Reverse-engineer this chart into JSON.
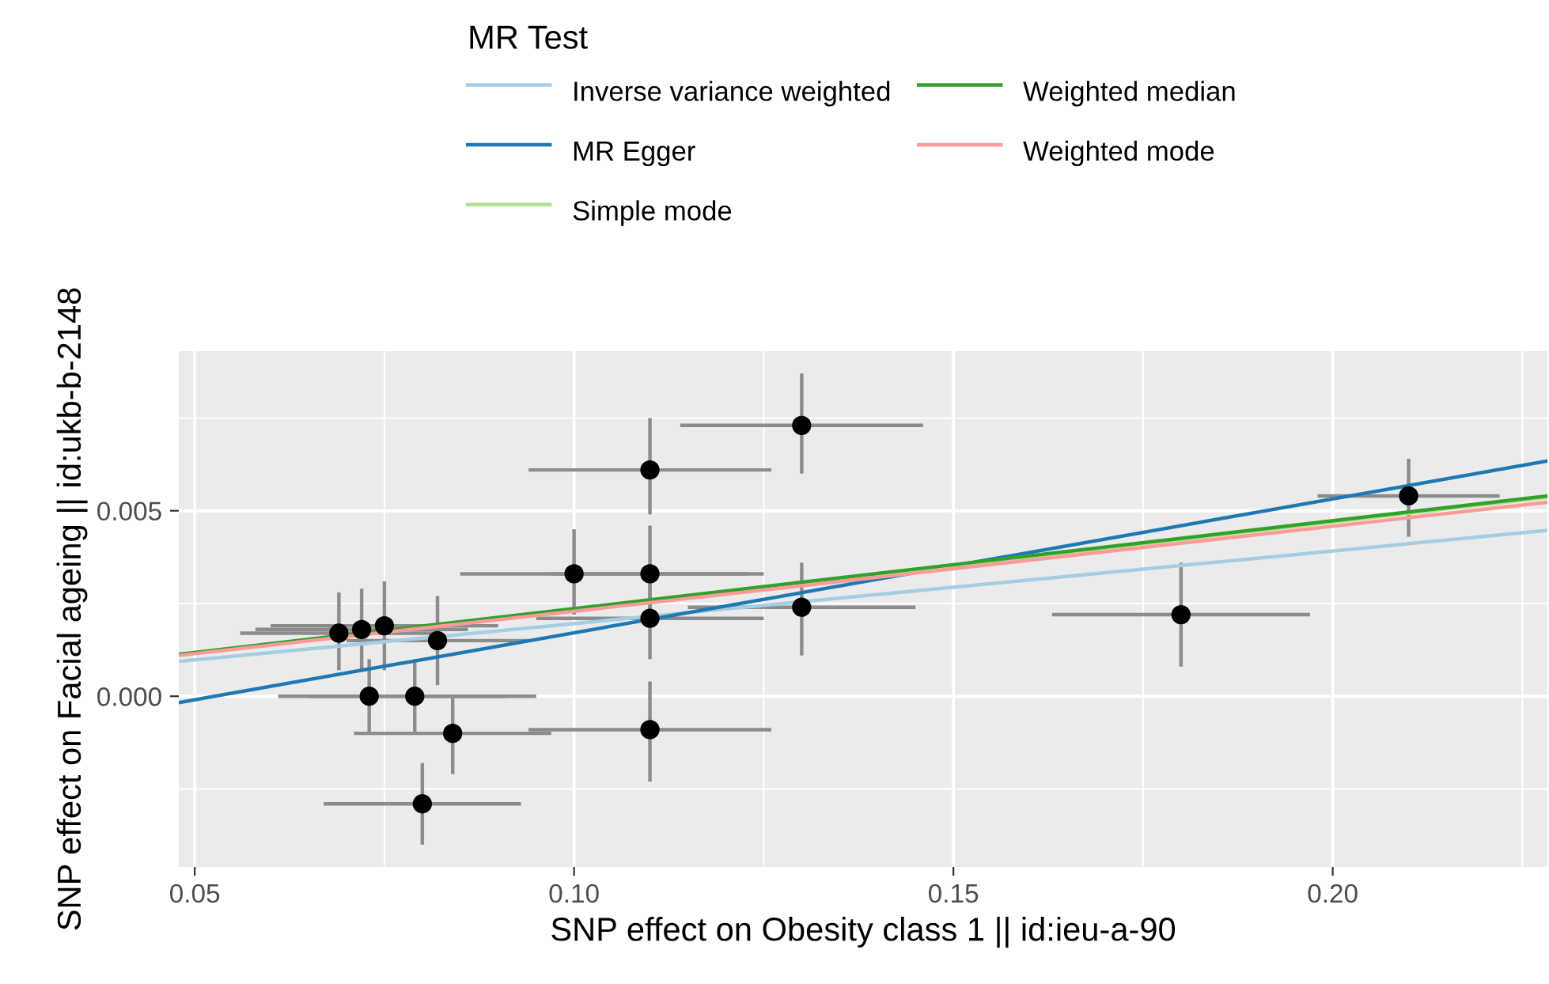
{
  "chart_data": {
    "type": "scatter",
    "xlabel": "SNP effect on Obesity class 1 || id:ieu-a-90",
    "ylabel": "SNP effect on Facial ageing || id:ukb-b-2148",
    "legend_title": "MR Test",
    "legend": "top",
    "grid": true,
    "xlim": [
      0.0479,
      0.2283
    ],
    "ylim": [
      -0.0046,
      0.0093
    ],
    "xticks": [
      {
        "value": 0.05,
        "label": "0.05"
      },
      {
        "value": 0.1,
        "label": "0.10"
      },
      {
        "value": 0.15,
        "label": "0.15"
      },
      {
        "value": 0.2,
        "label": "0.20"
      }
    ],
    "yticks": [
      {
        "value": 0.0,
        "label": "0.000"
      },
      {
        "value": 0.005,
        "label": "0.005"
      }
    ],
    "series": [
      {
        "marker": "circle",
        "color": "#000000",
        "x": [
          0.13,
          0.11,
          0.1,
          0.11,
          0.11,
          0.13,
          0.069,
          0.072,
          0.075,
          0.082,
          0.073,
          0.079,
          0.084,
          0.08,
          0.11,
          0.18,
          0.21
        ],
        "values": [
          0.0073,
          0.0061,
          0.0033,
          0.0033,
          0.0021,
          0.0024,
          0.0017,
          0.0018,
          0.0019,
          0.0015,
          0.0,
          0.0,
          -0.001,
          -0.0029,
          -0.0009,
          0.0022,
          0.0054
        ],
        "xerrors": [
          [
            0.114,
            0.146
          ],
          [
            0.094,
            0.126
          ],
          [
            0.085,
            0.125
          ],
          [
            0.097,
            0.123
          ],
          [
            0.095,
            0.125
          ],
          [
            0.115,
            0.145
          ],
          [
            0.056,
            0.082
          ],
          [
            0.058,
            0.086
          ],
          [
            0.06,
            0.09
          ],
          [
            0.07,
            0.094
          ],
          [
            0.061,
            0.091
          ],
          [
            0.065,
            0.095
          ],
          [
            0.071,
            0.097
          ],
          [
            0.067,
            0.093
          ],
          [
            0.094,
            0.126
          ],
          [
            0.163,
            0.197
          ],
          [
            0.198,
            0.222
          ]
        ],
        "errors": [
          [
            0.006,
            0.0087
          ],
          [
            0.0049,
            0.0075
          ],
          [
            0.0022,
            0.0045
          ],
          [
            0.002,
            0.0046
          ],
          [
            0.001,
            0.0032
          ],
          [
            0.0011,
            0.0036
          ],
          [
            0.0007,
            0.0028
          ],
          [
            0.0007,
            0.0029
          ],
          [
            0.0007,
            0.0031
          ],
          [
            0.0003,
            0.0027
          ],
          [
            -0.001,
            0.001
          ],
          [
            -0.001,
            0.001
          ],
          [
            -0.0021,
            0.0
          ],
          [
            -0.004,
            -0.0018
          ],
          [
            -0.0023,
            0.0004
          ],
          [
            0.0008,
            0.0036
          ],
          [
            0.0043,
            0.0064
          ]
        ]
      },
      {
        "type": "line",
        "name": "Inverse variance weighted",
        "color": "#a6cee3",
        "x": [
          0.0479,
          0.2283
        ],
        "values": [
          0.00094,
          0.00447
        ]
      },
      {
        "type": "line",
        "name": "MR Egger",
        "color": "#1f78b4",
        "x": [
          0.0479,
          0.2283
        ],
        "values": [
          -0.00017,
          0.00634
        ]
      },
      {
        "type": "line",
        "name": "Simple mode",
        "color": "#b2df8a",
        "x": [
          0.0479,
          0.2283
        ],
        "values": [
          0.00112,
          0.00536
        ]
      },
      {
        "type": "line",
        "name": "Weighted median",
        "color": "#33a02c",
        "x": [
          0.0479,
          0.2283
        ],
        "values": [
          0.00113,
          0.0054
        ]
      },
      {
        "type": "line",
        "name": "Weighted mode",
        "color": "#fb9a99",
        "x": [
          0.0479,
          0.2283
        ],
        "values": [
          0.0011,
          0.00523
        ]
      }
    ]
  }
}
